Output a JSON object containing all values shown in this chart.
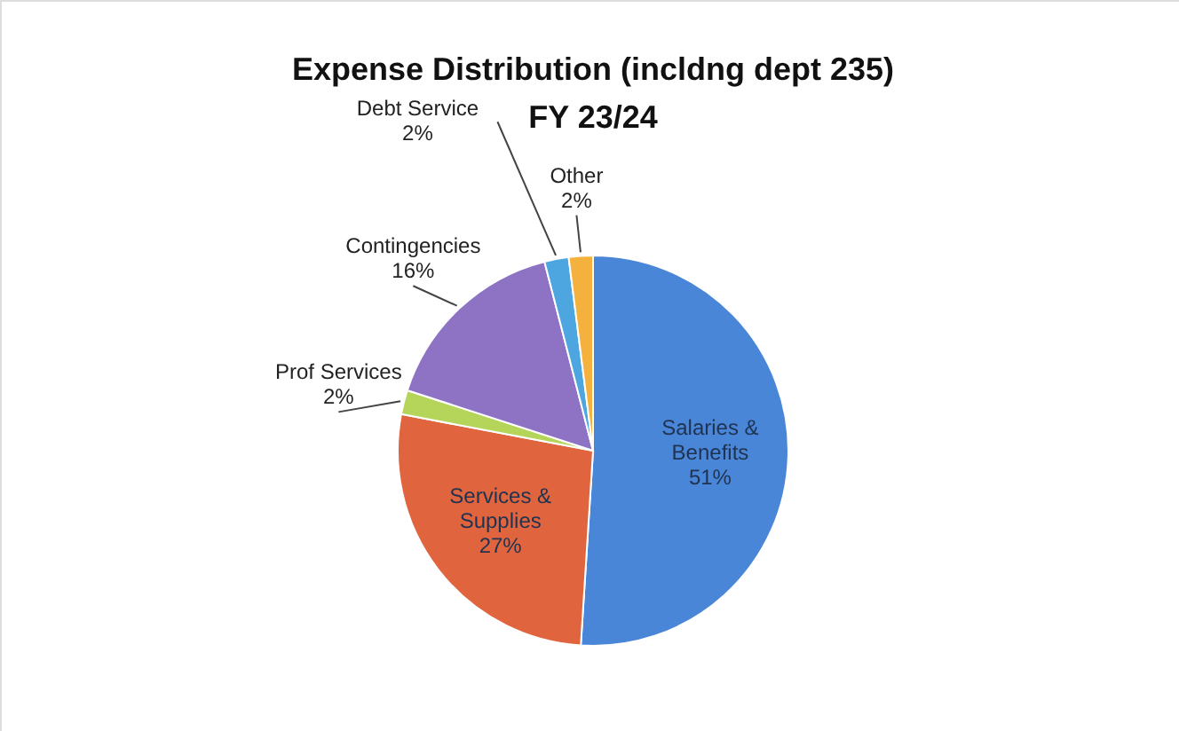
{
  "chart_data": {
    "type": "pie",
    "title": [
      "Expense Distribution (incldng dept 235)",
      "FY 23/24"
    ],
    "categories": [
      "Salaries & Benefits",
      "Services & Supplies",
      "Prof Services",
      "Contingencies",
      "Debt Service",
      "Other"
    ],
    "values": [
      51,
      27,
      2,
      16,
      2,
      2
    ],
    "colors": [
      "#4a86d8",
      "#e0643e",
      "#b5d55a",
      "#8e73c5",
      "#4ea6e0",
      "#f5b13e"
    ],
    "value_labels": [
      "51%",
      "27%",
      "2%",
      "16%",
      "2%",
      "2%"
    ]
  }
}
